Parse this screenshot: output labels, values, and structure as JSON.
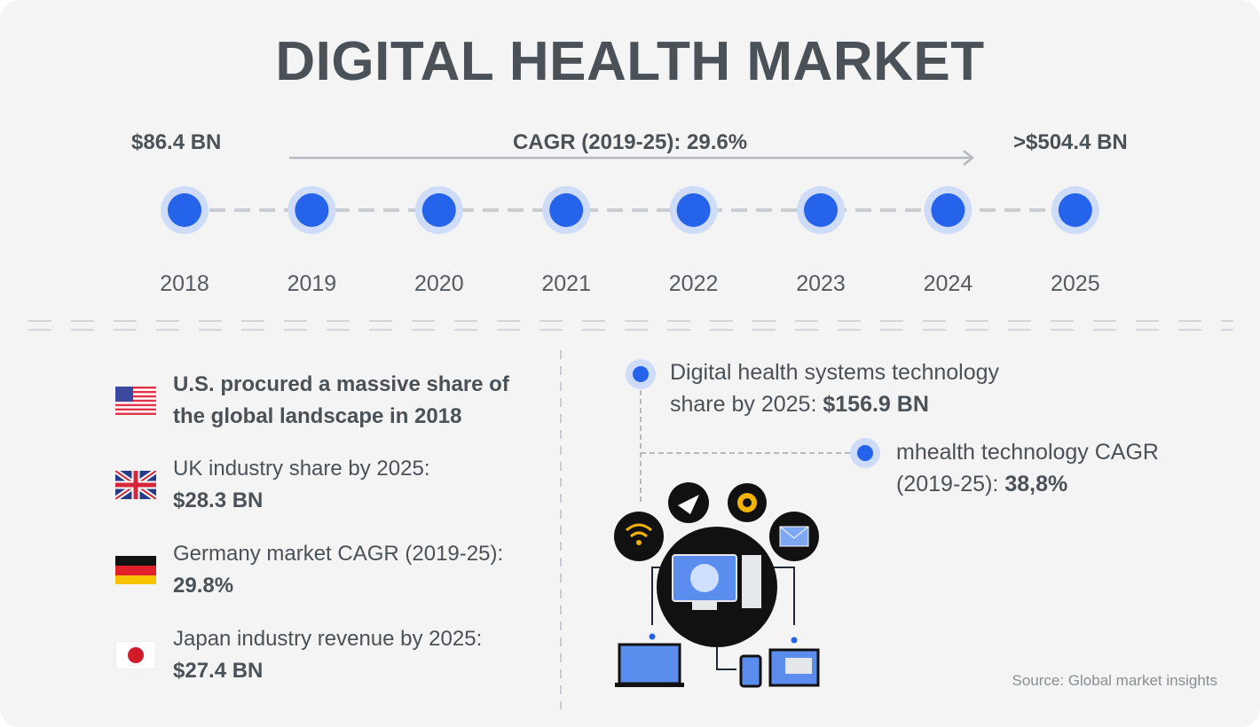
{
  "header": {
    "title": "DIGITAL HEALTH MARKET"
  },
  "timeline": {
    "start_value": "$86.4 BN",
    "cagr": "CAGR (2019-25): 29.6%",
    "end_value": ">$504.4 BN",
    "years": [
      "2018",
      "2019",
      "2020",
      "2021",
      "2022",
      "2023",
      "2024",
      "2025"
    ]
  },
  "facts": [
    {
      "text": "U.S. procured a massive share of the global landscape in 2018"
    },
    {
      "text": "UK industry share by 2025:",
      "highlight": "$28.3 BN"
    },
    {
      "text": "Germany market CAGR (2019-25):",
      "highlight": "29.8%"
    },
    {
      "text": "Japan industry revenue by 2025:",
      "highlight": "$27.4 BN"
    }
  ],
  "callouts": [
    {
      "text": "Digital health systems technology share by 2025:",
      "highlight": "$156.9 BN"
    },
    {
      "text": "mhealth technology CAGR (2019-25):",
      "highlight": "38,8%"
    }
  ],
  "source": "Source: Global market insights"
}
